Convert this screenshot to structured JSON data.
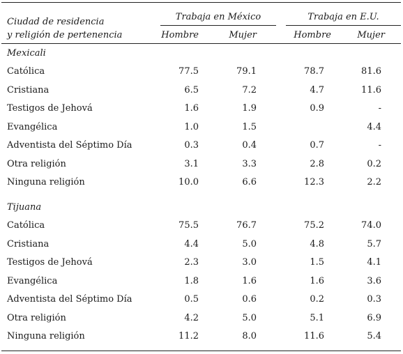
{
  "header": {
    "stub_line1": "Ciudad de residencia",
    "stub_line2": "y religión de pertenencia",
    "group_mexico": "Trabaja en México",
    "group_eu": "Trabaja en E.U.",
    "col_hombre_mx": "Hombre",
    "col_mujer_mx": "Mujer",
    "col_hombre_eu": "Hombre",
    "col_mujer_eu": "Mujer"
  },
  "sections": [
    {
      "city": "Mexicali",
      "rows": [
        {
          "religion": "Católica",
          "mx_h": "77.5",
          "mx_m": "79.1",
          "eu_h": "78.7",
          "eu_m": "81.6"
        },
        {
          "religion": "Cristiana",
          "mx_h": "6.5",
          "mx_m": "7.2",
          "eu_h": "4.7",
          "eu_m": "11.6"
        },
        {
          "religion": "Testigos de Jehová",
          "mx_h": "1.6",
          "mx_m": "1.9",
          "eu_h": "0.9",
          "eu_m": "-"
        },
        {
          "religion": "Evangélica",
          "mx_h": "1.0",
          "mx_m": "1.5",
          "eu_h": "",
          "eu_m": "4.4"
        },
        {
          "religion": "Adventista del Séptimo Día",
          "mx_h": "0.3",
          "mx_m": "0.4",
          "eu_h": "0.7",
          "eu_m": "-"
        },
        {
          "religion": "Otra religión",
          "mx_h": "3.1",
          "mx_m": "3.3",
          "eu_h": "2.8",
          "eu_m": "0.2"
        },
        {
          "religion": "Ninguna religión",
          "mx_h": "10.0",
          "mx_m": "6.6",
          "eu_h": "12.3",
          "eu_m": "2.2"
        }
      ]
    },
    {
      "city": "Tijuana",
      "rows": [
        {
          "religion": "Católica",
          "mx_h": "75.5",
          "mx_m": "76.7",
          "eu_h": "75.2",
          "eu_m": "74.0"
        },
        {
          "religion": "Cristiana",
          "mx_h": "4.4",
          "mx_m": "5.0",
          "eu_h": "4.8",
          "eu_m": "5.7"
        },
        {
          "religion": "Testigos de Jehová",
          "mx_h": "2.3",
          "mx_m": "3.0",
          "eu_h": "1.5",
          "eu_m": "4.1"
        },
        {
          "religion": "Evangélica",
          "mx_h": "1.8",
          "mx_m": "1.6",
          "eu_h": "1.6",
          "eu_m": "3.6"
        },
        {
          "religion": "Adventista del Séptimo Día",
          "mx_h": "0.5",
          "mx_m": "0.6",
          "eu_h": "0.2",
          "eu_m": "0.3"
        },
        {
          "religion": "Otra religión",
          "mx_h": "4.2",
          "mx_m": "5.0",
          "eu_h": "5.1",
          "eu_m": "6.9"
        },
        {
          "religion": "Ninguna religión",
          "mx_h": "11.2",
          "mx_m": "8.0",
          "eu_h": "11.6",
          "eu_m": "5.4"
        }
      ]
    }
  ]
}
